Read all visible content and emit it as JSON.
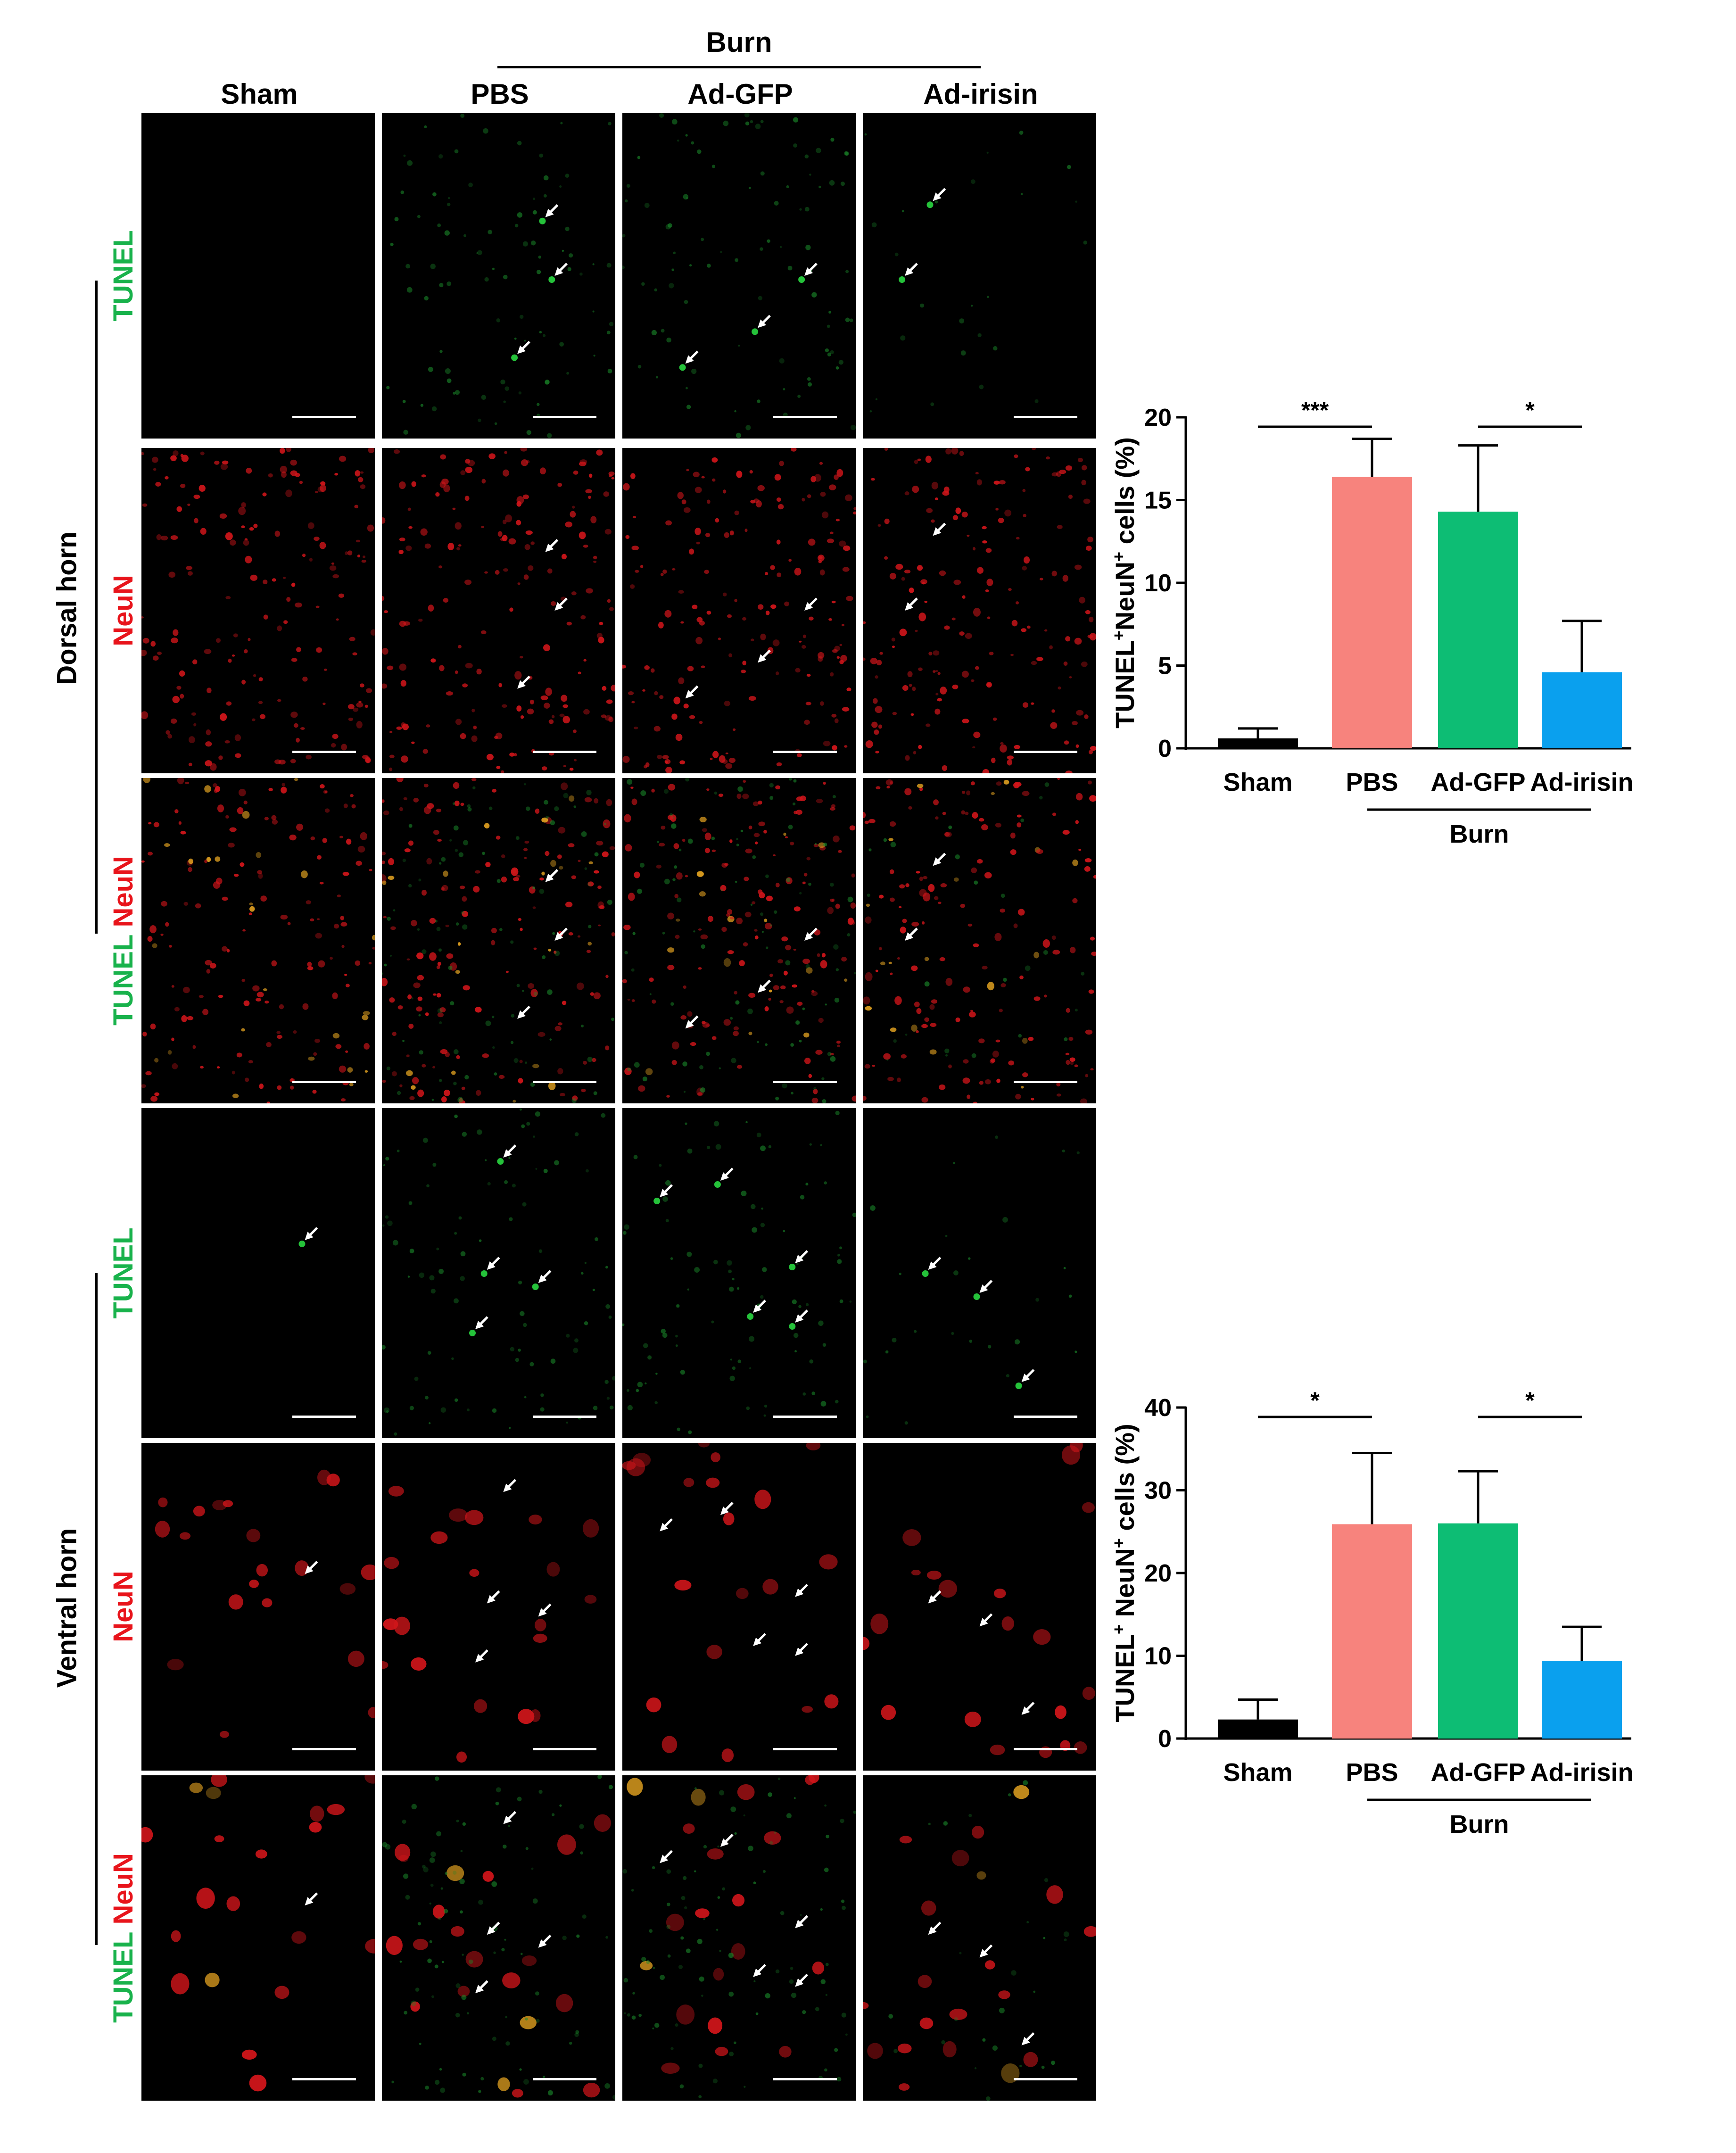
{
  "figure": {
    "group_label": "Burn",
    "columns": [
      "Sham",
      "PBS",
      "Ad-GFP",
      "Ad-irisin"
    ],
    "regions": [
      "Dorsal horn",
      "Ventral horn"
    ],
    "rows": [
      {
        "parts": [
          "TUNEL"
        ],
        "colors": [
          "green"
        ]
      },
      {
        "parts": [
          "NeuN"
        ],
        "colors": [
          "red"
        ]
      },
      {
        "parts": [
          "TUNEL",
          "NeuN"
        ],
        "colors": [
          "green",
          "red"
        ]
      },
      {
        "parts": [
          "TUNEL"
        ],
        "colors": [
          "green"
        ]
      },
      {
        "parts": [
          "NeuN"
        ],
        "colors": [
          "red"
        ]
      },
      {
        "parts": [
          "TUNEL",
          "NeuN"
        ],
        "colors": [
          "green",
          "red"
        ]
      }
    ],
    "colors": {
      "tunel": "#18b24b",
      "neun": "#e8141b",
      "panel_bg": "#000000",
      "arrow": "#ffffff",
      "scale_bar": "#ffffff"
    }
  },
  "chart_data": [
    {
      "type": "bar",
      "categories": [
        "Sham",
        "PBS",
        "Ad-GFP",
        "Ad-irisin"
      ],
      "values": [
        0.6,
        16.4,
        14.3,
        4.6
      ],
      "errors": [
        0.6,
        2.3,
        4.0,
        3.1
      ],
      "colors": [
        "#000000",
        "#f7837d",
        "#0dbd74",
        "#0aa0ee"
      ],
      "ylabel_parts": [
        "TUNEL",
        "+",
        "NeuN",
        "+",
        " cells (%)"
      ],
      "ylim": [
        0,
        20
      ],
      "yticks": [
        "0",
        "5",
        "10",
        "15",
        "20"
      ],
      "ytick_values": [
        0,
        5,
        10,
        15,
        20
      ],
      "group_label": "Burn",
      "group_range": [
        1,
        3
      ],
      "significance": [
        {
          "from": 0,
          "to": 1,
          "label": "***"
        },
        {
          "from": 2,
          "to": 3,
          "label": "*"
        }
      ]
    },
    {
      "type": "bar",
      "categories": [
        "Sham",
        "PBS",
        "Ad-GFP",
        "Ad-irisin"
      ],
      "values": [
        2.3,
        25.9,
        26.0,
        9.4
      ],
      "errors": [
        2.4,
        8.6,
        6.3,
        4.1
      ],
      "colors": [
        "#000000",
        "#f7837d",
        "#0dbd74",
        "#0aa0ee"
      ],
      "ylabel_parts": [
        "TUNEL",
        "+",
        " NeuN",
        "+",
        " cells (%)"
      ],
      "ylim": [
        0,
        40
      ],
      "yticks": [
        "0",
        "10",
        "20",
        "30",
        "40"
      ],
      "ytick_values": [
        0,
        10,
        20,
        30,
        40
      ],
      "group_label": "Burn",
      "group_range": [
        1,
        3
      ],
      "significance": [
        {
          "from": 0,
          "to": 1,
          "label": "*"
        },
        {
          "from": 2,
          "to": 3,
          "label": "*"
        }
      ]
    }
  ]
}
